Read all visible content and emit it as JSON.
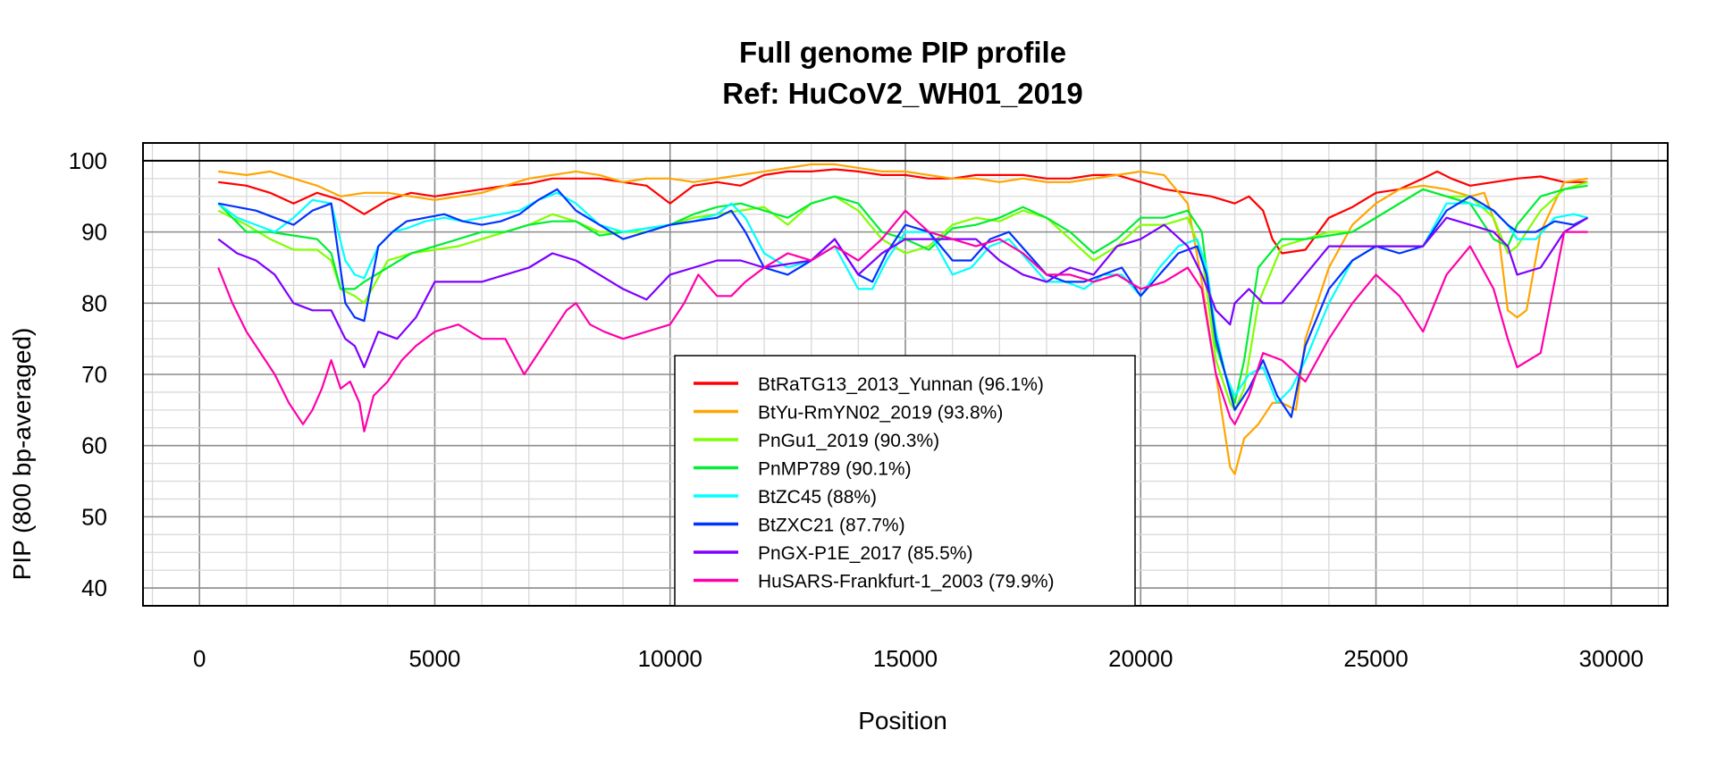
{
  "chart_data": {
    "type": "line",
    "title": "Full genome PIP profile",
    "subtitle": "Ref: HuCoV2_WH01_2019",
    "xlabel": "Position",
    "ylabel": "PIP (800 bp-averaged)",
    "xlim": [
      -1200,
      31200
    ],
    "ylim": [
      37.5,
      102.5
    ],
    "xticks": [
      0,
      5000,
      10000,
      15000,
      20000,
      25000,
      30000
    ],
    "yticks": [
      40,
      50,
      60,
      70,
      80,
      90,
      100
    ],
    "x_minor_grid_step": 1000,
    "y_minor_grid_step": 2.5,
    "grid": true,
    "reference_line_y": 100,
    "legend_position": "bottom-center",
    "series": [
      {
        "name": "BtRaTG13_2013_Yunnan (96.1%)",
        "color": "#ff0000",
        "x": [
          400,
          1000,
          1500,
          2000,
          2500,
          3000,
          3500,
          4000,
          4500,
          5000,
          5500,
          6000,
          6500,
          7000,
          7500,
          8000,
          8500,
          9000,
          9500,
          10000,
          10500,
          11000,
          11500,
          12000,
          12500,
          13000,
          13500,
          14000,
          14500,
          15000,
          15500,
          16000,
          16500,
          17000,
          17500,
          18000,
          18500,
          19000,
          19500,
          20000,
          20500,
          21000,
          21500,
          22000,
          22300,
          22600,
          22800,
          23000,
          23500,
          24000,
          24500,
          25000,
          25500,
          26000,
          26300,
          26600,
          27000,
          27500,
          28000,
          28500,
          29000,
          29500
        ],
        "y": [
          97,
          96.5,
          95.5,
          94,
          95.5,
          94.5,
          92.5,
          94.5,
          95.5,
          95,
          95.5,
          96,
          96.5,
          96.8,
          97.5,
          97.5,
          97.5,
          97,
          96.5,
          94,
          96.5,
          97,
          96.5,
          98,
          98.5,
          98.5,
          98.8,
          98.5,
          98,
          98,
          97.5,
          97.5,
          98,
          98,
          98,
          97.5,
          97.5,
          98,
          98,
          97,
          96,
          95.5,
          95,
          94,
          95,
          93,
          89,
          87,
          87.5,
          92,
          93.5,
          95.5,
          96,
          97.5,
          98.5,
          97.5,
          96.5,
          97,
          97.5,
          97.8,
          97,
          97
        ]
      },
      {
        "name": "BtYu-RmYN02_2019 (93.8%)",
        "color": "#ffa500",
        "x": [
          400,
          1000,
          1500,
          2000,
          2500,
          3000,
          3500,
          4000,
          4500,
          5000,
          5500,
          6000,
          6500,
          7000,
          7500,
          8000,
          8500,
          9000,
          9500,
          10000,
          10500,
          11000,
          11500,
          12000,
          12500,
          13000,
          13500,
          14000,
          14500,
          15000,
          15500,
          16000,
          16500,
          17000,
          17500,
          18000,
          18500,
          19000,
          19500,
          20000,
          20500,
          21000,
          21300,
          21600,
          21900,
          22000,
          22200,
          22500,
          22800,
          23000,
          23300,
          23500,
          24000,
          24500,
          25000,
          25500,
          26000,
          26500,
          27000,
          27300,
          27600,
          27800,
          28000,
          28200,
          28500,
          29000,
          29500
        ],
        "y": [
          98.5,
          98,
          98.5,
          97.5,
          96.5,
          95,
          95.5,
          95.5,
          95,
          94.5,
          95,
          95.5,
          96.5,
          97.5,
          98,
          98.5,
          98,
          97,
          97.5,
          97.5,
          97,
          97.5,
          98,
          98.5,
          99,
          99.5,
          99.5,
          99,
          98.5,
          98.5,
          98,
          97.5,
          97.5,
          97,
          97.5,
          97,
          97,
          97.5,
          98,
          98.5,
          98,
          94,
          83,
          70,
          57,
          56,
          61,
          63,
          66,
          66,
          65,
          75,
          85,
          91,
          94,
          96,
          96.5,
          96,
          95,
          95.5,
          90,
          79,
          78,
          79,
          90,
          97,
          97.5
        ]
      },
      {
        "name": "PnGu1_2019 (90.3%)",
        "color": "#80ff00",
        "x": [
          400,
          1000,
          1500,
          2000,
          2500,
          2800,
          3000,
          3300,
          3500,
          4000,
          4500,
          5000,
          5500,
          6000,
          6500,
          7000,
          7500,
          8000,
          8500,
          9000,
          9500,
          10000,
          10500,
          11000,
          11500,
          12000,
          12500,
          13000,
          13500,
          14000,
          14500,
          15000,
          15500,
          16000,
          16500,
          17000,
          17500,
          18000,
          18500,
          19000,
          19500,
          20000,
          20500,
          21000,
          21300,
          21600,
          21900,
          22000,
          22200,
          22500,
          23000,
          23500,
          24000,
          24500,
          25000,
          25500,
          26000,
          26500,
          27000,
          27500,
          27800,
          28000,
          28500,
          29000,
          29500
        ],
        "y": [
          93,
          91,
          89,
          87.5,
          87.5,
          86,
          82,
          81,
          80,
          86,
          87,
          87.5,
          88,
          89,
          90,
          91,
          92.5,
          91.5,
          90,
          90,
          90,
          91,
          92,
          92.5,
          93,
          93.5,
          91,
          94,
          95,
          93,
          89,
          87,
          88,
          91,
          92,
          91.5,
          93,
          92,
          89,
          86,
          88,
          91,
          91,
          92,
          87,
          72,
          66,
          65,
          68,
          80,
          88,
          89,
          90,
          90,
          92,
          94,
          96,
          95,
          95,
          92,
          87,
          88,
          93,
          96,
          97
        ]
      },
      {
        "name": "PnMP789 (90.1%)",
        "color": "#00ee33",
        "x": [
          400,
          1000,
          1500,
          2000,
          2500,
          2800,
          3000,
          3300,
          3500,
          4000,
          4500,
          5000,
          5500,
          6000,
          6500,
          7000,
          7500,
          8000,
          8500,
          9000,
          9500,
          10000,
          10500,
          11000,
          11500,
          12000,
          12500,
          13000,
          13500,
          14000,
          14500,
          15000,
          15500,
          16000,
          16500,
          17000,
          17500,
          18000,
          18500,
          19000,
          19500,
          20000,
          20500,
          21000,
          21300,
          21600,
          21900,
          22000,
          22200,
          22500,
          23000,
          23500,
          24000,
          24500,
          25000,
          25500,
          26000,
          26500,
          27000,
          27500,
          27800,
          28000,
          28500,
          29000,
          29500
        ],
        "y": [
          94,
          90,
          90,
          89.5,
          89,
          87,
          82,
          82,
          83,
          85,
          87,
          88,
          89,
          90,
          90,
          91,
          91.5,
          91.5,
          89.5,
          90,
          90.5,
          91,
          92.5,
          93.5,
          94,
          93,
          92,
          94,
          95,
          94,
          90,
          89,
          87.5,
          90.5,
          91,
          92,
          93.5,
          92,
          90,
          87,
          89,
          92,
          92,
          93,
          90,
          74,
          68,
          66,
          72,
          85,
          89,
          89,
          89.5,
          90,
          92,
          94,
          96,
          95,
          94,
          89,
          88,
          91,
          95,
          96,
          96.5
        ]
      },
      {
        "name": "BtZC45 (88%)",
        "color": "#00ffff",
        "x": [
          400,
          800,
          1200,
          1600,
          2000,
          2400,
          2800,
          3100,
          3300,
          3500,
          3800,
          4100,
          4400,
          4800,
          5200,
          5600,
          6000,
          6400,
          6800,
          7200,
          7600,
          8000,
          8500,
          9000,
          9500,
          10000,
          10500,
          11000,
          11300,
          11600,
          12000,
          12500,
          13000,
          13500,
          14000,
          14300,
          14600,
          15000,
          15500,
          16000,
          16400,
          16800,
          17200,
          17600,
          18000,
          18400,
          18800,
          19200,
          19600,
          20000,
          20400,
          20800,
          21200,
          21400,
          21600,
          21800,
          22000,
          22300,
          22600,
          22900,
          23200,
          23500,
          24000,
          24500,
          25000,
          25500,
          26000,
          26500,
          27000,
          27500,
          27800,
          28000,
          28400,
          28800,
          29200,
          29500
        ],
        "y": [
          94,
          92,
          91,
          90,
          92,
          94.5,
          94,
          86,
          84,
          83.5,
          88,
          90,
          90.5,
          91.5,
          92,
          91.5,
          92,
          92.5,
          93,
          94.5,
          95.5,
          94,
          91,
          90,
          90.5,
          91,
          91.5,
          92.5,
          94,
          92,
          87,
          85,
          86,
          88,
          82,
          82,
          86,
          90,
          90,
          84,
          85,
          88,
          89,
          86,
          83,
          83,
          82,
          84,
          84,
          81,
          85,
          88,
          89,
          85,
          76,
          70,
          67,
          70,
          71,
          66,
          68,
          72,
          80,
          86,
          88,
          88,
          88,
          94,
          94,
          93,
          91,
          89,
          89,
          92,
          92.5,
          92
        ]
      },
      {
        "name": "BtZXC21 (87.7%)",
        "color": "#0033ff",
        "x": [
          400,
          800,
          1200,
          1600,
          2000,
          2400,
          2800,
          3100,
          3300,
          3500,
          3800,
          4100,
          4400,
          4800,
          5200,
          5600,
          6000,
          6400,
          6800,
          7200,
          7600,
          8000,
          8500,
          9000,
          9500,
          10000,
          10500,
          11000,
          11300,
          11600,
          12000,
          12500,
          13000,
          13500,
          14000,
          14300,
          14600,
          15000,
          15500,
          16000,
          16400,
          16800,
          17200,
          17600,
          18000,
          18400,
          18800,
          19200,
          19600,
          20000,
          20400,
          20800,
          21200,
          21400,
          21600,
          21800,
          22000,
          22300,
          22600,
          22900,
          23200,
          23500,
          24000,
          24500,
          25000,
          25500,
          26000,
          26500,
          27000,
          27500,
          27800,
          28000,
          28400,
          28800,
          29200,
          29500
        ],
        "y": [
          94,
          93.5,
          93,
          92,
          91,
          93,
          94,
          80,
          78,
          77.5,
          88,
          90,
          91.5,
          92,
          92.5,
          91.5,
          91,
          91.5,
          92.5,
          94.5,
          96,
          93,
          91,
          89,
          90,
          91,
          91.5,
          92,
          93,
          90,
          85,
          84,
          86,
          89,
          84,
          83,
          87,
          91,
          90,
          86,
          86,
          89,
          90,
          87,
          84,
          83,
          83,
          84,
          85,
          81,
          84,
          87,
          88,
          84,
          75,
          70,
          65,
          68,
          72,
          67,
          64,
          74,
          82,
          86,
          88,
          87,
          88,
          93,
          95,
          93,
          91,
          90,
          90,
          91.5,
          91,
          92
        ]
      },
      {
        "name": "PnGX-P1E_2017 (85.5%)",
        "color": "#7f00ff",
        "x": [
          400,
          800,
          1200,
          1600,
          2000,
          2400,
          2800,
          3100,
          3300,
          3500,
          3800,
          4200,
          4600,
          5000,
          5500,
          6000,
          6500,
          7000,
          7500,
          8000,
          8500,
          9000,
          9500,
          10000,
          10500,
          11000,
          11500,
          12000,
          12500,
          13000,
          13500,
          14000,
          14500,
          15000,
          15500,
          16000,
          16500,
          17000,
          17500,
          18000,
          18500,
          19000,
          19500,
          20000,
          20500,
          21000,
          21300,
          21600,
          21900,
          22000,
          22300,
          22600,
          23000,
          23500,
          24000,
          24500,
          25000,
          25500,
          26000,
          26500,
          27000,
          27500,
          27800,
          28000,
          28500,
          29000,
          29500
        ],
        "y": [
          89,
          87,
          86,
          84,
          80,
          79,
          79,
          75,
          74,
          71,
          76,
          75,
          78,
          83,
          83,
          83,
          84,
          85,
          87,
          86,
          84,
          82,
          80.5,
          84,
          85,
          86,
          86,
          85,
          85.5,
          86,
          89,
          84,
          87,
          89,
          89,
          89,
          89,
          86,
          84,
          83,
          85,
          84,
          88,
          89,
          91,
          88,
          84,
          79,
          77,
          80,
          82,
          80,
          80,
          84,
          88,
          88,
          88,
          88,
          88,
          92,
          91,
          90,
          88,
          84,
          85,
          90,
          92
        ]
      },
      {
        "name": "HuSARS-Frankfurt-1_2003 (79.9%)",
        "color": "#ff00aa",
        "x": [
          400,
          700,
          1000,
          1300,
          1600,
          1900,
          2200,
          2400,
          2600,
          2800,
          3000,
          3200,
          3400,
          3500,
          3700,
          4000,
          4300,
          4600,
          5000,
          5500,
          6000,
          6500,
          6900,
          7200,
          7500,
          7800,
          8000,
          8300,
          8600,
          9000,
          9500,
          10000,
          10300,
          10600,
          11000,
          11300,
          11600,
          12000,
          12500,
          13000,
          13500,
          14000,
          14500,
          15000,
          15500,
          16000,
          16500,
          17000,
          17500,
          18000,
          18500,
          19000,
          19500,
          20000,
          20500,
          21000,
          21300,
          21600,
          21900,
          22000,
          22300,
          22600,
          23000,
          23500,
          24000,
          24500,
          25000,
          25500,
          26000,
          26500,
          27000,
          27500,
          27800,
          28000,
          28500,
          29000,
          29500
        ],
        "y": [
          85,
          80,
          76,
          73,
          70,
          66,
          63,
          65,
          68,
          72,
          68,
          69,
          66,
          62,
          67,
          69,
          72,
          74,
          76,
          77,
          75,
          75,
          70,
          73,
          76,
          79,
          80,
          77,
          76,
          75,
          76,
          77,
          80,
          84,
          81,
          81,
          83,
          85,
          87,
          86,
          88,
          86,
          89,
          93,
          90,
          89,
          88,
          89,
          87,
          84,
          84,
          83,
          84,
          82,
          83,
          85,
          82,
          70,
          64,
          63,
          67,
          73,
          72,
          69,
          75,
          80,
          84,
          81,
          76,
          84,
          88,
          82,
          75,
          71,
          73,
          90,
          90
        ]
      }
    ]
  },
  "legend": [
    {
      "label": "BtRaTG13_2013_Yunnan (96.1%)",
      "color": "#ff0000"
    },
    {
      "label": "BtYu-RmYN02_2019 (93.8%)",
      "color": "#ffa500"
    },
    {
      "label": "PnGu1_2019 (90.3%)",
      "color": "#80ff00"
    },
    {
      "label": "PnMP789 (90.1%)",
      "color": "#00ee33"
    },
    {
      "label": "BtZC45 (88%)",
      "color": "#00ffff"
    },
    {
      "label": "BtZXC21 (87.7%)",
      "color": "#0033ff"
    },
    {
      "label": "PnGX-P1E_2017 (85.5%)",
      "color": "#7f00ff"
    },
    {
      "label": "HuSARS-Frankfurt-1_2003 (79.9%)",
      "color": "#ff00aa"
    }
  ]
}
